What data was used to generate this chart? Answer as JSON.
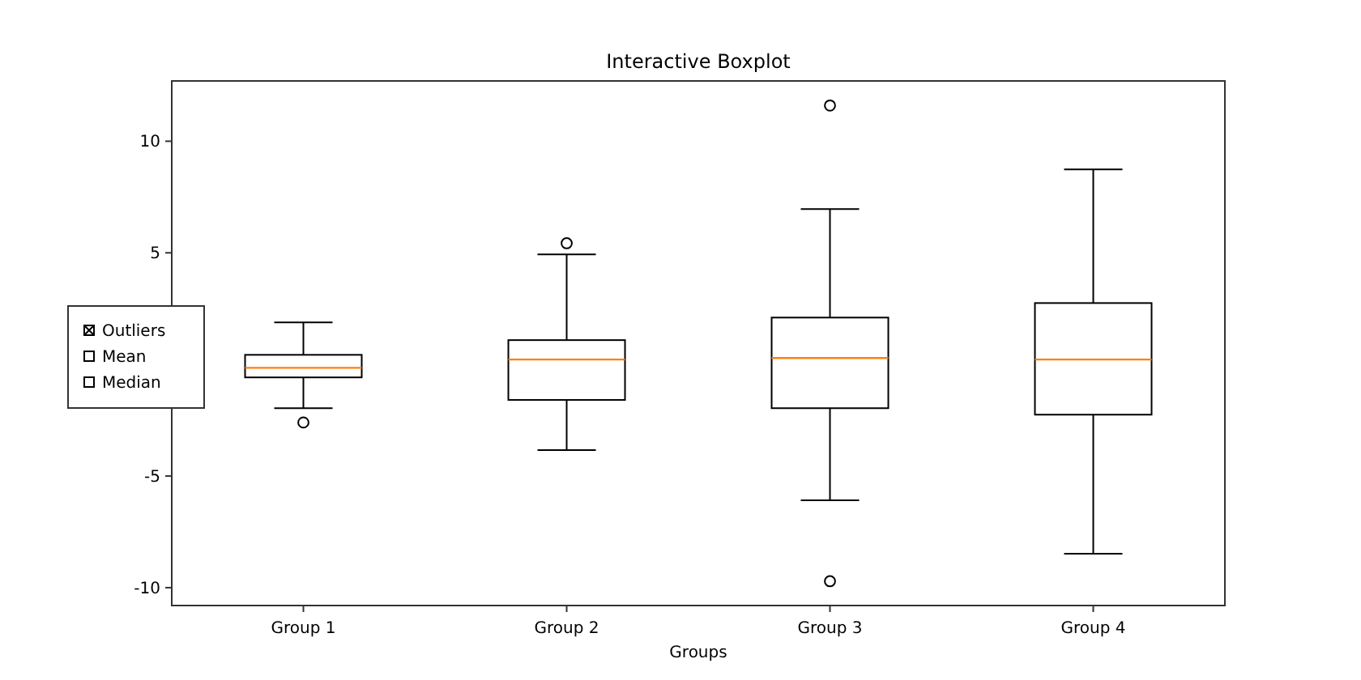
{
  "chart_data": {
    "type": "box",
    "title": "Interactive Boxplot",
    "xlabel": "Groups",
    "categories": [
      "Group 1",
      "Group 2",
      "Group 3",
      "Group 4"
    ],
    "boxes": [
      {
        "low": -1.96,
        "q1": -0.58,
        "median": -0.15,
        "q3": 0.43,
        "high": 1.88,
        "outliers": [
          -2.6
        ]
      },
      {
        "low": -3.84,
        "q1": -1.59,
        "median": 0.22,
        "q3": 1.09,
        "high": 4.93,
        "outliers": [
          5.43
        ]
      },
      {
        "low": -6.09,
        "q1": -1.96,
        "median": 0.29,
        "q3": 2.1,
        "high": 6.96,
        "outliers": [
          11.6,
          -9.71
        ]
      },
      {
        "low": -8.48,
        "q1": -2.25,
        "median": 0.22,
        "q3": 2.75,
        "high": 8.74
      }
    ],
    "ylim": [
      -10.8,
      12.7
    ],
    "yticks": [
      -10,
      -5,
      5,
      10
    ],
    "grid": false,
    "annotations": [
      "Outliers",
      "Mean",
      "Median"
    ]
  }
}
